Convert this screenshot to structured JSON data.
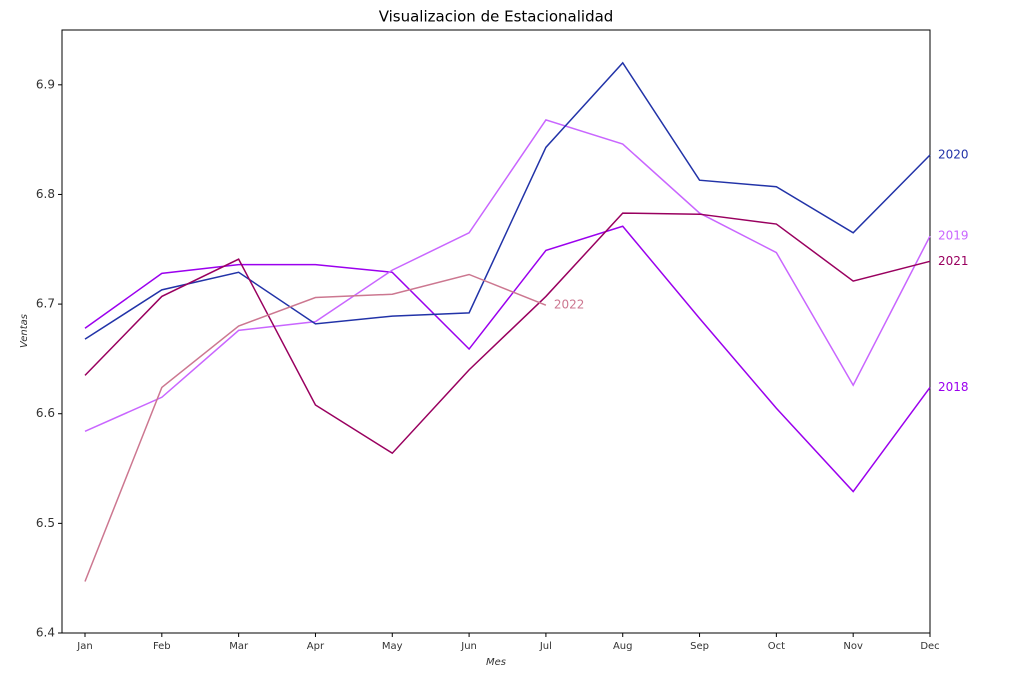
{
  "chart_data": {
    "type": "line",
    "title": "Visualizacion de Estacionalidad",
    "x_label": "Mes",
    "y_label": "Ventas",
    "categories": [
      "Jan",
      "Feb",
      "Mar",
      "Apr",
      "May",
      "Jun",
      "Jul",
      "Aug",
      "Sep",
      "Oct",
      "Nov",
      "Dec"
    ],
    "ylim": [
      6.4,
      6.95
    ],
    "yticks": [
      6.4,
      6.5,
      6.6,
      6.7,
      6.8,
      6.9
    ],
    "grid": false,
    "series": [
      {
        "name": "2018",
        "color": "#9b00ee",
        "values": [
          6.678,
          6.728,
          6.736,
          6.736,
          6.729,
          6.659,
          6.749,
          6.771,
          6.687,
          6.605,
          6.529,
          6.624
        ]
      },
      {
        "name": "2019",
        "color": "#c966ff",
        "values": [
          6.584,
          6.615,
          6.676,
          6.684,
          6.731,
          6.765,
          6.868,
          6.846,
          6.783,
          6.747,
          6.626,
          6.762
        ]
      },
      {
        "name": "2020",
        "color": "#2233a8",
        "values": [
          6.668,
          6.713,
          6.729,
          6.682,
          6.689,
          6.692,
          6.843,
          6.92,
          6.813,
          6.807,
          6.765,
          6.836
        ]
      },
      {
        "name": "2021",
        "color": "#99005f",
        "values": [
          6.635,
          6.707,
          6.741,
          6.608,
          6.564,
          6.64,
          6.707,
          6.783,
          6.782,
          6.773,
          6.721,
          6.739
        ]
      },
      {
        "name": "2022",
        "color": "#cc7790",
        "values": [
          6.447,
          6.624,
          6.68,
          6.706,
          6.709,
          6.727,
          6.699,
          null,
          null,
          null,
          null,
          null
        ]
      }
    ]
  }
}
